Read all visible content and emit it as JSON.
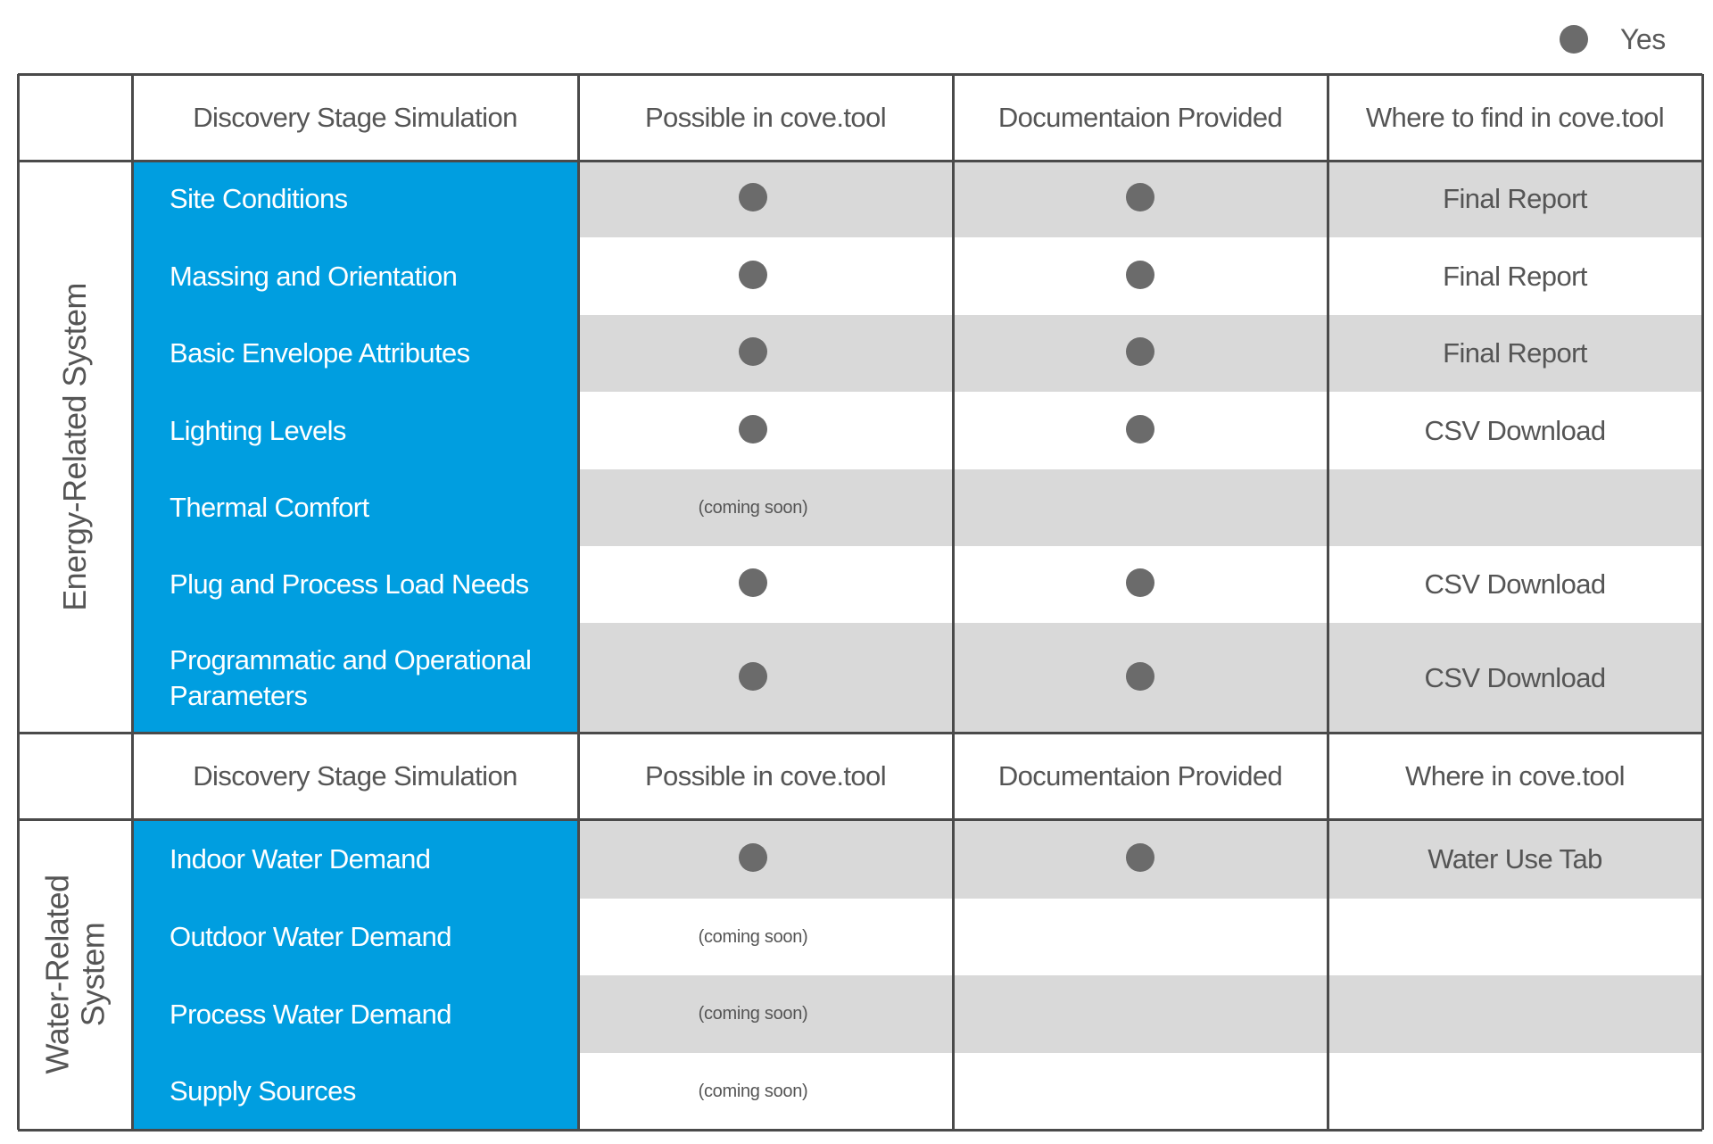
{
  "legend": {
    "label": "Yes"
  },
  "energy": {
    "group_label": "Energy-Related System",
    "headers": [
      "Discovery Stage Simulation",
      "Possible in cove.tool",
      "Documentaion Provided",
      "Where to find in cove.tool"
    ],
    "rows": [
      {
        "name": "Site Conditions",
        "possible": true,
        "possible_note": "",
        "doc": true,
        "where": "Final Report"
      },
      {
        "name": "Massing and Orientation",
        "possible": true,
        "possible_note": "",
        "doc": true,
        "where": "Final Report"
      },
      {
        "name": "Basic Envelope Attributes",
        "possible": true,
        "possible_note": "",
        "doc": true,
        "where": "Final Report"
      },
      {
        "name": "Lighting Levels",
        "possible": true,
        "possible_note": "",
        "doc": true,
        "where": "CSV Download"
      },
      {
        "name": "Thermal Comfort",
        "possible": false,
        "possible_note": "(coming soon)",
        "doc": false,
        "where": ""
      },
      {
        "name": "Plug and Process Load Needs",
        "possible": true,
        "possible_note": "",
        "doc": true,
        "where": "CSV Download"
      },
      {
        "name": "Programmatic and Operational Parameters",
        "possible": true,
        "possible_note": "",
        "doc": true,
        "where": "CSV Download"
      }
    ]
  },
  "water": {
    "group_label_line1": "Water-Related",
    "group_label_line2": "System",
    "headers": [
      "Discovery Stage Simulation",
      "Possible in cove.tool",
      "Documentaion Provided",
      "Where in cove.tool"
    ],
    "rows": [
      {
        "name": "Indoor Water Demand",
        "possible": true,
        "possible_note": "",
        "doc": true,
        "where": "Water Use Tab"
      },
      {
        "name": "Outdoor Water Demand",
        "possible": false,
        "possible_note": "(coming soon)",
        "doc": false,
        "where": ""
      },
      {
        "name": "Process Water Demand",
        "possible": false,
        "possible_note": "(coming soon)",
        "doc": false,
        "where": ""
      },
      {
        "name": "Supply Sources",
        "possible": false,
        "possible_note": "(coming soon)",
        "doc": false,
        "where": ""
      }
    ]
  }
}
